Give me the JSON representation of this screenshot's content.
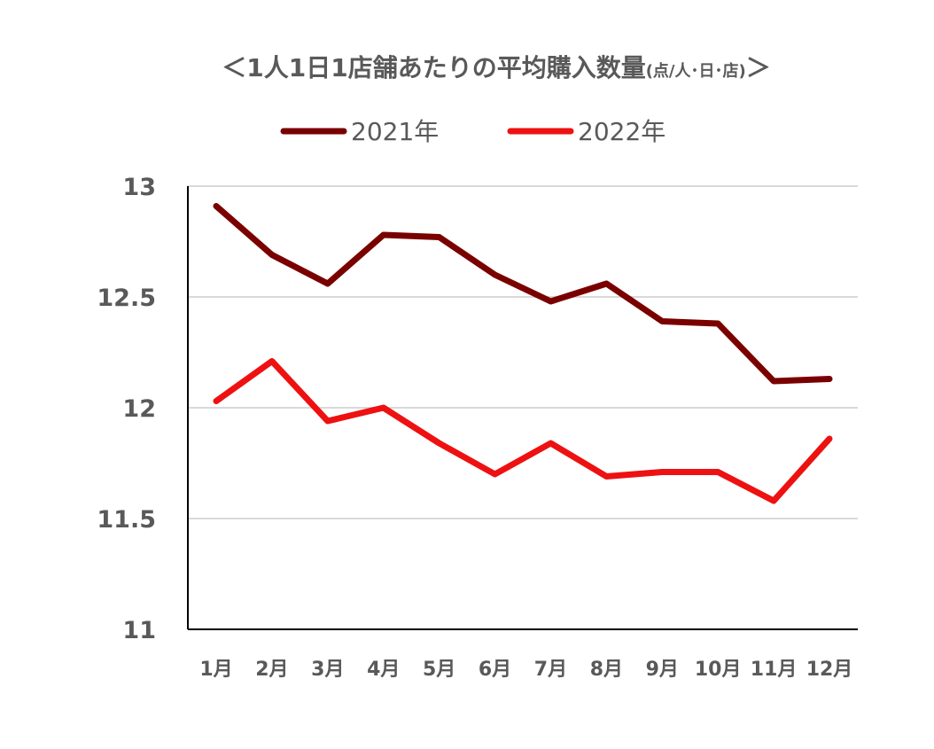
{
  "chart_data": {
    "type": "line",
    "title": "＜1人1日1店舗あたりの平均購入数量",
    "title_unit": "(点/人･日･店)",
    "title_close": "＞",
    "categories": [
      "1月",
      "2月",
      "3月",
      "4月",
      "5月",
      "6月",
      "7月",
      "8月",
      "9月",
      "10月",
      "11月",
      "12月"
    ],
    "series": [
      {
        "name": "2021年",
        "color": "#7a0000",
        "values": [
          12.91,
          12.69,
          12.56,
          12.78,
          12.77,
          12.6,
          12.48,
          12.56,
          12.39,
          12.38,
          12.12,
          12.13
        ]
      },
      {
        "name": "2022年",
        "color": "#ee1111",
        "values": [
          12.03,
          12.21,
          11.94,
          12.0,
          11.84,
          11.7,
          11.84,
          11.69,
          11.71,
          11.71,
          11.58,
          11.86
        ]
      }
    ],
    "ylim": [
      11,
      13
    ],
    "yticks": [
      "11",
      "11.5",
      "12",
      "12.5",
      "13"
    ],
    "ytick_values": [
      11,
      11.5,
      12,
      12.5,
      13
    ],
    "xlabel": "",
    "ylabel": "",
    "grid": true,
    "legend": "top"
  }
}
